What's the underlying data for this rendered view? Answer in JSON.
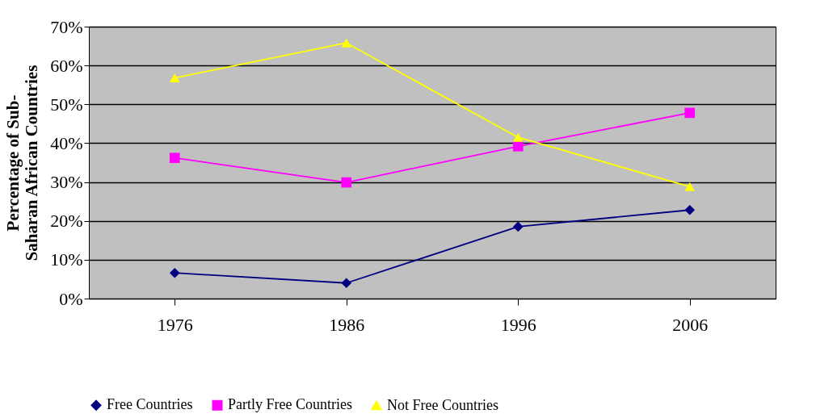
{
  "chart_data": {
    "type": "line",
    "ylabel": "Percentage of Sub-Saharan African Countries",
    "categories": [
      "1976",
      "1986",
      "1996",
      "2006"
    ],
    "series": [
      {
        "name": "Free Countries",
        "color": "#000080",
        "marker": "diamond",
        "values": [
          6.6,
          4.0,
          18.5,
          22.8
        ]
      },
      {
        "name": "Partly Free Countries",
        "color": "#ff00ff",
        "marker": "square",
        "values": [
          36.2,
          29.9,
          39.2,
          47.8
        ]
      },
      {
        "name": "Not Free Countries",
        "color": "#ffff00",
        "marker": "triangle",
        "values": [
          56.8,
          65.8,
          41.5,
          28.8
        ]
      }
    ],
    "ylim": [
      0,
      70
    ],
    "yticks": [
      {
        "value": 0,
        "label": "0%"
      },
      {
        "value": 10,
        "label": "10%"
      },
      {
        "value": 20,
        "label": "20%"
      },
      {
        "value": 30,
        "label": "30%"
      },
      {
        "value": 40,
        "label": "40%"
      },
      {
        "value": 50,
        "label": "50%"
      },
      {
        "value": 60,
        "label": "60%"
      },
      {
        "value": 70,
        "label": "70%"
      }
    ],
    "grid": "y",
    "legend": "bottom",
    "line_style": "solid"
  }
}
